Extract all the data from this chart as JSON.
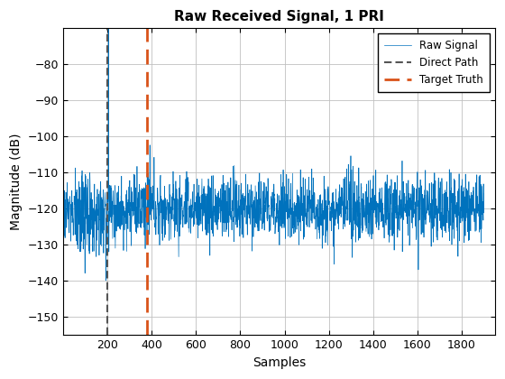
{
  "title": "Raw Received Signal, 1 PRI",
  "xlabel": "Samples",
  "ylabel": "Magnitude (dB)",
  "n_samples": 1900,
  "noise_mean": -120,
  "noise_std": 4.5,
  "direct_path_x": 200,
  "target_truth_x": 380,
  "spike_x": 205,
  "spike_val": -70,
  "ylim": [
    -155,
    -70
  ],
  "xlim": [
    0,
    1950
  ],
  "xticks": [
    200,
    400,
    600,
    800,
    1000,
    1200,
    1400,
    1600,
    1800
  ],
  "yticks": [
    -80,
    -90,
    -100,
    -110,
    -120,
    -130,
    -140,
    -150
  ],
  "signal_color": "#0072BD",
  "direct_path_color": "#555555",
  "target_truth_color": "#D95319",
  "legend_loc": "upper right",
  "figsize": [
    5.6,
    4.2
  ],
  "dpi": 100
}
